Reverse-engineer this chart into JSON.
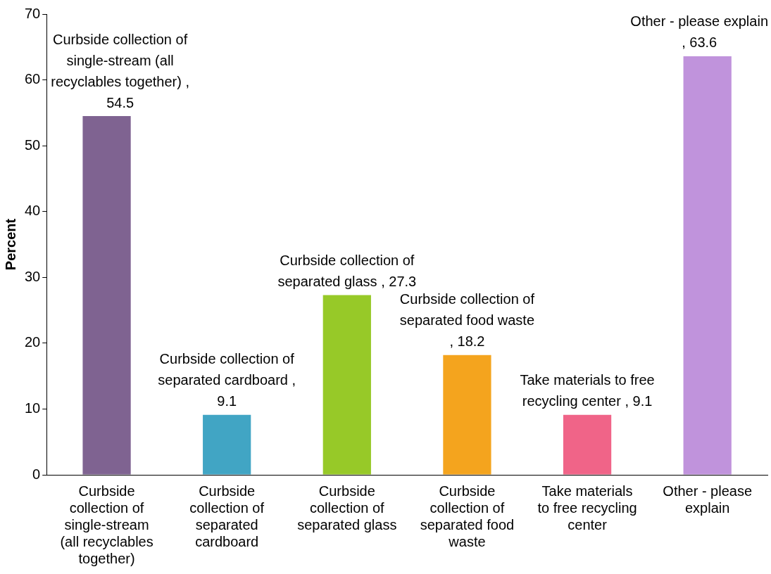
{
  "chart_data": {
    "type": "bar",
    "ylabel": "Percent",
    "categories": [
      "Curbside collection of single-stream (all recyclables together)",
      "Curbside collection of separated cardboard",
      "Curbside collection of separated glass",
      "Curbside collection of separated food waste",
      "Take materials to free recycling center",
      "Other - please explain"
    ],
    "values": [
      54.5,
      9.1,
      27.3,
      18.2,
      9.1,
      63.6
    ],
    "colors": [
      "#7f6391",
      "#41a5c4",
      "#97c928",
      "#f4a41e",
      "#f06488",
      "#c093dc"
    ],
    "value_labels": [
      "Curbside collection of single-stream (all recyclables together) , 54.5",
      "Curbside collection of separated cardboard , 9.1",
      "Curbside collection of separated glass , 27.3",
      "Curbside collection of separated food waste , 18.2",
      "Take materials to free recycling center , 9.1",
      "Other - please explain , 63.6"
    ],
    "ylim": [
      0,
      70
    ],
    "yticks": [
      0,
      10,
      20,
      30,
      40,
      50,
      60,
      70
    ],
    "grid": false,
    "legend": false
  }
}
